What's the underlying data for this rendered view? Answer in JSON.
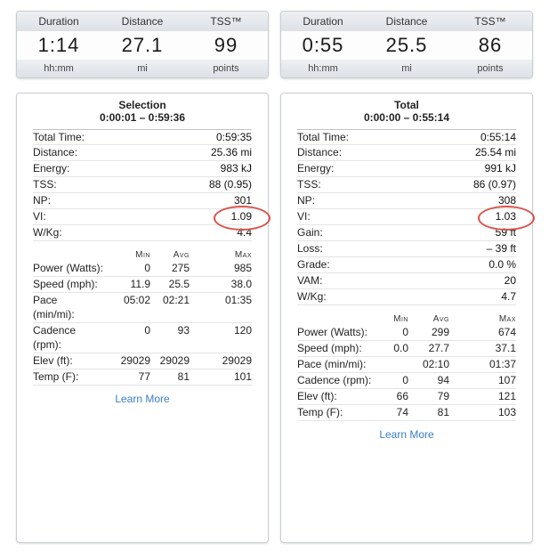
{
  "summaries": [
    {
      "headers": [
        "Duration",
        "Distance",
        "TSS™"
      ],
      "values": [
        "1:14",
        "27.1",
        "99"
      ],
      "units": [
        "hh:mm",
        "mi",
        "points"
      ]
    },
    {
      "headers": [
        "Duration",
        "Distance",
        "TSS™"
      ],
      "values": [
        "0:55",
        "25.5",
        "86"
      ],
      "units": [
        "hh:mm",
        "mi",
        "points"
      ]
    }
  ],
  "left": {
    "title": "Selection",
    "range": "0:00:01 – 0:59:36",
    "rows": [
      {
        "label": "Total Time:",
        "value": "0:59:35"
      },
      {
        "label": "Distance:",
        "value": "25.36 mi"
      },
      {
        "label": "Energy:",
        "value": "983 kJ"
      },
      {
        "label": "TSS:",
        "value": "88 (0.95)"
      },
      {
        "label": "NP:",
        "value": "301"
      },
      {
        "label": "VI:",
        "value": "1.09"
      },
      {
        "label": "W/Kg:",
        "value": "4.4"
      }
    ],
    "stat_headers": [
      "Min",
      "Avg",
      "Max"
    ],
    "stats": [
      {
        "label": "Power (Watts):",
        "min": "0",
        "avg": "275",
        "max": "985"
      },
      {
        "label": "Speed (mph):",
        "min": "11.9",
        "avg": "25.5",
        "max": "38.0"
      },
      {
        "label": "Pace\n(min/mi):",
        "min": "05:02",
        "avg": "02:21",
        "max": "01:35"
      },
      {
        "label": "Cadence\n(rpm):",
        "min": "0",
        "avg": "93",
        "max": "120"
      },
      {
        "label": "Elev (ft):",
        "min": "29029",
        "avg": "29029",
        "max": "29029"
      },
      {
        "label": "Temp (F):",
        "min": "77",
        "avg": "81",
        "max": "101"
      }
    ],
    "learn_more": "Learn More"
  },
  "right": {
    "title": "Total",
    "range": "0:00:00 – 0:55:14",
    "rows": [
      {
        "label": "Total Time:",
        "value": "0:55:14"
      },
      {
        "label": "Distance:",
        "value": "25.54 mi"
      },
      {
        "label": "Energy:",
        "value": "991 kJ"
      },
      {
        "label": "TSS:",
        "value": "86 (0.97)"
      },
      {
        "label": "NP:",
        "value": "308"
      },
      {
        "label": "VI:",
        "value": "1.03"
      },
      {
        "label": "Gain:",
        "value": "59 ft"
      },
      {
        "label": "Loss:",
        "value": "– 39 ft"
      },
      {
        "label": "Grade:",
        "value": "0.0 %"
      },
      {
        "label": "VAM:",
        "value": "20"
      },
      {
        "label": "W/Kg:",
        "value": "4.7"
      }
    ],
    "stat_headers": [
      "Min",
      "Avg",
      "Max"
    ],
    "stats": [
      {
        "label": "Power (Watts):",
        "min": "0",
        "avg": "299",
        "max": "674"
      },
      {
        "label": "Speed (mph):",
        "min": "0.0",
        "avg": "27.7",
        "max": "37.1"
      },
      {
        "label": "Pace (min/mi):",
        "min": "",
        "avg": "02:10",
        "max": "01:37"
      },
      {
        "label": "Cadence (rpm):",
        "min": "0",
        "avg": "94",
        "max": "107"
      },
      {
        "label": "Elev (ft):",
        "min": "66",
        "avg": "79",
        "max": "121"
      },
      {
        "label": "Temp (F):",
        "min": "74",
        "avg": "81",
        "max": "103"
      }
    ],
    "learn_more": "Learn More"
  },
  "highlight_color": "#d9524a",
  "link_color": "#3a7fc4"
}
